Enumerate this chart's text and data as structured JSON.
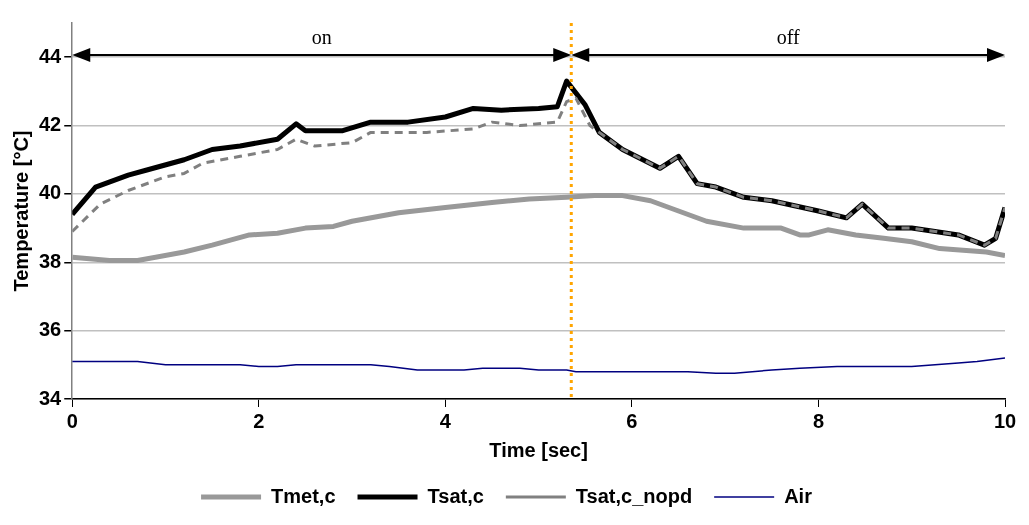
{
  "chart_data": {
    "type": "line",
    "xlabel": "Time [sec]",
    "ylabel": "Temperature [°C]",
    "xlim": [
      0,
      10
    ],
    "xticks": [
      0,
      2,
      4,
      6,
      8,
      10
    ],
    "ylim": [
      34,
      45
    ],
    "yticks": [
      34,
      36,
      38,
      40,
      42,
      44
    ],
    "grid": "y",
    "legend": "bottom",
    "marker": "none",
    "series": [
      {
        "name": "Tmet,c",
        "color": "#999999",
        "line_style": "solid",
        "x": [
          0,
          0.4,
          0.7,
          1.2,
          1.5,
          1.9,
          2.2,
          2.5,
          2.8,
          3.0,
          3.5,
          4.0,
          4.5,
          4.9,
          5.3,
          5.6,
          5.9,
          6.2,
          6.5,
          6.8,
          7.2,
          7.6,
          7.8,
          7.9,
          8.1,
          8.4,
          8.7,
          9.0,
          9.3,
          9.8,
          10
        ],
        "values": [
          38.15,
          38.05,
          38.05,
          38.3,
          38.5,
          38.8,
          38.85,
          39.0,
          39.05,
          39.2,
          39.45,
          39.6,
          39.75,
          39.85,
          39.9,
          39.95,
          39.95,
          39.8,
          39.5,
          39.2,
          39.0,
          39.0,
          38.8,
          38.8,
          38.95,
          38.8,
          38.7,
          38.6,
          38.4,
          38.3,
          38.2
        ]
      },
      {
        "name": "Tsat,c",
        "color": "#000000",
        "line_style": "solid",
        "x": [
          0,
          0.25,
          0.6,
          0.8,
          1.2,
          1.5,
          1.8,
          2.2,
          2.4,
          2.5,
          2.9,
          3.2,
          3.6,
          4.0,
          4.3,
          4.6,
          5.0,
          5.2,
          5.3,
          5.5,
          5.65,
          5.9,
          6.3,
          6.5,
          6.7,
          6.9,
          7.2,
          7.5,
          8.0,
          8.3,
          8.47,
          8.75,
          9.0,
          9.5,
          9.78,
          9.9,
          10
        ],
        "values": [
          39.4,
          40.2,
          40.55,
          40.7,
          41.0,
          41.3,
          41.4,
          41.6,
          42.05,
          41.85,
          41.85,
          42.1,
          42.1,
          42.25,
          42.5,
          42.45,
          42.5,
          42.55,
          43.3,
          42.6,
          41.8,
          41.3,
          40.75,
          41.1,
          40.3,
          40.2,
          39.9,
          39.8,
          39.5,
          39.3,
          39.7,
          39.0,
          39.0,
          38.8,
          38.5,
          38.7,
          39.6
        ]
      },
      {
        "name": "Tsat,c_nopd",
        "color": "#808080",
        "line_style": "dashed",
        "x": [
          0,
          0.3,
          0.6,
          1.0,
          1.2,
          1.4,
          1.8,
          2.2,
          2.4,
          2.6,
          3.0,
          3.2,
          3.8,
          4.3,
          4.5,
          4.8,
          5.2,
          5.3,
          5.4,
          5.55,
          5.65,
          5.9,
          6.3,
          6.5,
          6.7,
          6.9,
          7.2,
          7.5,
          8.0,
          8.3,
          8.47,
          8.75,
          9.0,
          9.5,
          9.78,
          9.9,
          10
        ],
        "values": [
          38.9,
          39.7,
          40.1,
          40.5,
          40.6,
          40.9,
          41.1,
          41.3,
          41.6,
          41.4,
          41.5,
          41.8,
          41.8,
          41.9,
          42.1,
          42.0,
          42.1,
          42.7,
          42.8,
          42.0,
          41.8,
          41.3,
          40.75,
          41.1,
          40.3,
          40.2,
          39.9,
          39.8,
          39.5,
          39.3,
          39.7,
          39.0,
          39.0,
          38.8,
          38.5,
          38.7,
          39.6
        ]
      },
      {
        "name": "Air",
        "color": "#000080",
        "line_style": "solid",
        "x": [
          0,
          0.7,
          1.0,
          1.8,
          2.0,
          2.2,
          2.4,
          3.2,
          3.4,
          3.7,
          4.2,
          4.4,
          4.8,
          5.0,
          5.3,
          5.4,
          6.6,
          6.9,
          7.1,
          7.5,
          7.8,
          8.2,
          9.0,
          9.5,
          9.7,
          10
        ],
        "values": [
          35.1,
          35.1,
          35.0,
          35.0,
          34.95,
          34.95,
          35.0,
          35.0,
          34.95,
          34.85,
          34.85,
          34.9,
          34.9,
          34.85,
          34.85,
          34.8,
          34.8,
          34.75,
          34.75,
          34.85,
          34.9,
          34.95,
          34.95,
          35.05,
          35.1,
          35.2
        ]
      }
    ],
    "ref_lines": [
      {
        "axis": "x",
        "value": 5.35,
        "color": "#ffa500",
        "line_style": "dotted"
      }
    ],
    "annotations": [
      "on",
      "off"
    ]
  }
}
